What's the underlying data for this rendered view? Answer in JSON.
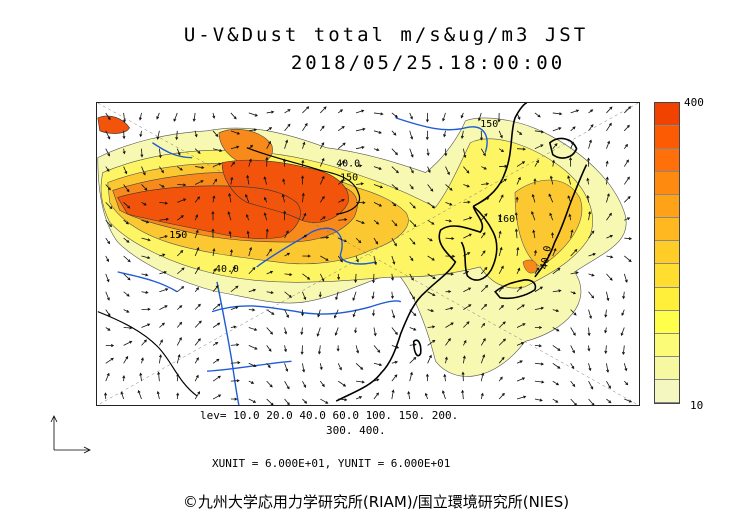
{
  "title": {
    "line1": "U-V&Dust total m/s&ug/m3 JST",
    "line2": "2018/05/25.18:00:00"
  },
  "colorbar": {
    "max_label": "400",
    "min_label": "10",
    "colors": [
      "#f5f7c0",
      "#f7f9a0",
      "#fbfb78",
      "#fffe4a",
      "#ffee3a",
      "#ffde30",
      "#ffcc28",
      "#ffb820",
      "#ffa218",
      "#ff8a10",
      "#ff700a",
      "#fd5a04",
      "#f24200"
    ]
  },
  "map_labels": {
    "contour_40_north": "40.0",
    "contour_150_north": "150",
    "contour_150_west": "150",
    "contour_40_south": "40.0",
    "contour_160_east": "160",
    "contour_40_east": "40.0",
    "contour_150_ne": "150"
  },
  "legend": {
    "levels_line1": "lev= 10.0 20.0 40.0 60.0 100. 150. 200.",
    "levels_line2": "300. 400.",
    "units": "XUNIT = 6.000E+01, YUNIT = 6.000E+01"
  },
  "copyright": "©九州大学応用力学研究所(RIAM)/国立環境研究所(NIES)",
  "palette": {
    "light": "#f7f8b2",
    "yellow": "#fdf563",
    "gold": "#fcc832",
    "orange": "#f88a1c",
    "red": "#f2540c",
    "rivers": "#1e5bd6",
    "coast": "#000000"
  }
}
